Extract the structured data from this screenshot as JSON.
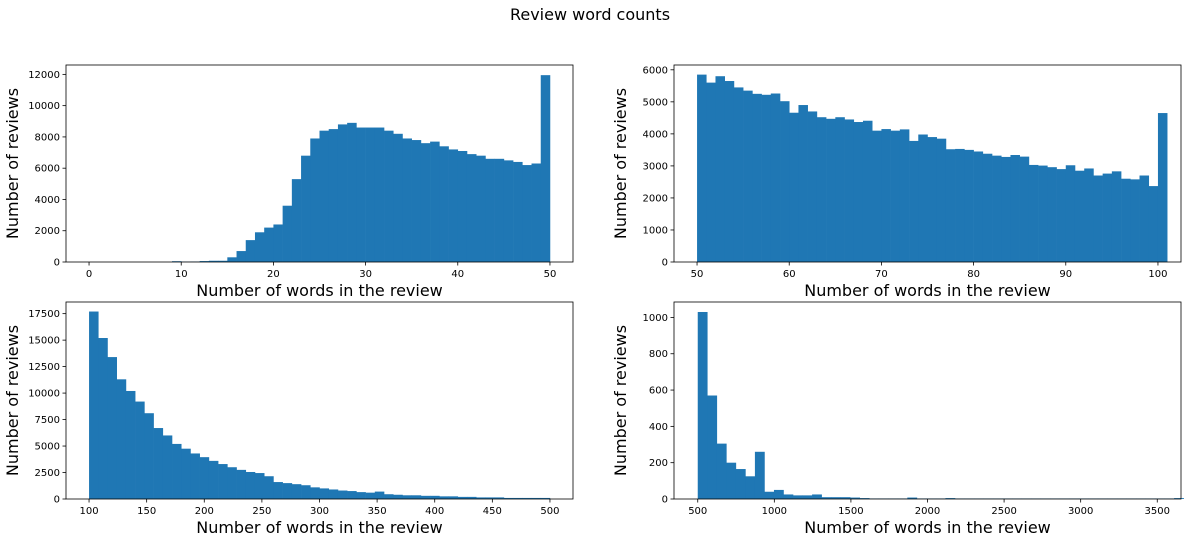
{
  "figure": {
    "title": "Review word counts"
  },
  "colors": {
    "bar": "#1f77b4",
    "axis": "#000000",
    "background": "#ffffff"
  },
  "chart_data": [
    {
      "type": "bar",
      "subtype": "histogram",
      "xlabel": "Number of words in the review",
      "ylabel": "Number of reviews",
      "xlim": [
        -2.5,
        52.5
      ],
      "ylim": [
        0,
        12600
      ],
      "xticks": [
        0,
        10,
        20,
        30,
        40,
        50
      ],
      "yticks": [
        0,
        2000,
        4000,
        6000,
        8000,
        10000,
        12000
      ],
      "bin_start": 0,
      "bin_width": 1,
      "values": [
        0,
        0,
        0,
        0,
        0,
        0,
        0,
        0,
        0,
        50,
        20,
        30,
        60,
        80,
        80,
        300,
        700,
        1400,
        1900,
        2200,
        2400,
        3600,
        5300,
        6800,
        7900,
        8400,
        8500,
        8800,
        8900,
        8600,
        8600,
        8600,
        8400,
        8200,
        7900,
        7800,
        7600,
        7700,
        7400,
        7200,
        7100,
        6900,
        6800,
        6600,
        6600,
        6500,
        6400,
        6200,
        6300,
        11950
      ]
    },
    {
      "type": "bar",
      "subtype": "histogram",
      "xlabel": "Number of words in the review",
      "ylabel": "Number of reviews",
      "xlim": [
        47.5,
        102.5
      ],
      "ylim": [
        0,
        6150
      ],
      "xticks": [
        50,
        60,
        70,
        80,
        90,
        100
      ],
      "yticks": [
        0,
        1000,
        2000,
        3000,
        4000,
        5000,
        6000
      ],
      "bin_start": 50,
      "bin_width": 1,
      "values": [
        5850,
        5600,
        5800,
        5650,
        5450,
        5350,
        5250,
        5220,
        5260,
        5020,
        4660,
        4900,
        4700,
        4520,
        4470,
        4520,
        4450,
        4370,
        4410,
        4100,
        4150,
        4100,
        4140,
        3780,
        3980,
        3900,
        3850,
        3520,
        3530,
        3500,
        3450,
        3380,
        3320,
        3280,
        3340,
        3290,
        3030,
        3010,
        2960,
        2900,
        3020,
        2850,
        2920,
        2700,
        2760,
        2830,
        2600,
        2580,
        2700,
        2370,
        4650
      ]
    },
    {
      "type": "bar",
      "subtype": "histogram",
      "xlabel": "Number of words in the review",
      "ylabel": "Number of reviews",
      "xlim": [
        80,
        520
      ],
      "ylim": [
        0,
        18600
      ],
      "xticks": [
        100,
        150,
        200,
        250,
        300,
        350,
        400,
        450,
        500
      ],
      "yticks": [
        0,
        2500,
        5000,
        7500,
        10000,
        12500,
        15000,
        17500
      ],
      "bin_start": 100,
      "bin_width": 8,
      "values": [
        17700,
        15200,
        13400,
        11300,
        10200,
        9200,
        8100,
        6700,
        6000,
        5200,
        4750,
        4300,
        3950,
        3600,
        3300,
        3000,
        2750,
        2550,
        2450,
        2150,
        1600,
        1500,
        1400,
        1300,
        1100,
        1000,
        900,
        800,
        750,
        650,
        600,
        700,
        450,
        400,
        350,
        350,
        300,
        300,
        250,
        250,
        200,
        200,
        150,
        150,
        150,
        100,
        100,
        100,
        100,
        100
      ]
    },
    {
      "type": "bar",
      "subtype": "histogram",
      "xlabel": "Number of words in the review",
      "ylabel": "Number of reviews",
      "xlim": [
        345,
        3655
      ],
      "ylim": [
        0,
        1085
      ],
      "xticks": [
        500,
        1000,
        1500,
        2000,
        2500,
        3000,
        3500
      ],
      "yticks": [
        0,
        200,
        400,
        600,
        800,
        1000
      ],
      "bin_start": 500,
      "bin_width": 62.2,
      "values": [
        1030,
        570,
        305,
        200,
        165,
        125,
        260,
        40,
        50,
        25,
        20,
        20,
        25,
        10,
        10,
        10,
        8,
        5,
        3,
        3,
        3,
        3,
        8,
        3,
        3,
        3,
        5,
        3,
        3,
        3,
        3,
        3,
        3,
        3,
        3,
        3,
        3,
        3,
        3,
        3,
        3,
        3,
        3,
        3,
        3,
        3,
        3,
        3,
        3,
        3,
        5
      ]
    }
  ]
}
